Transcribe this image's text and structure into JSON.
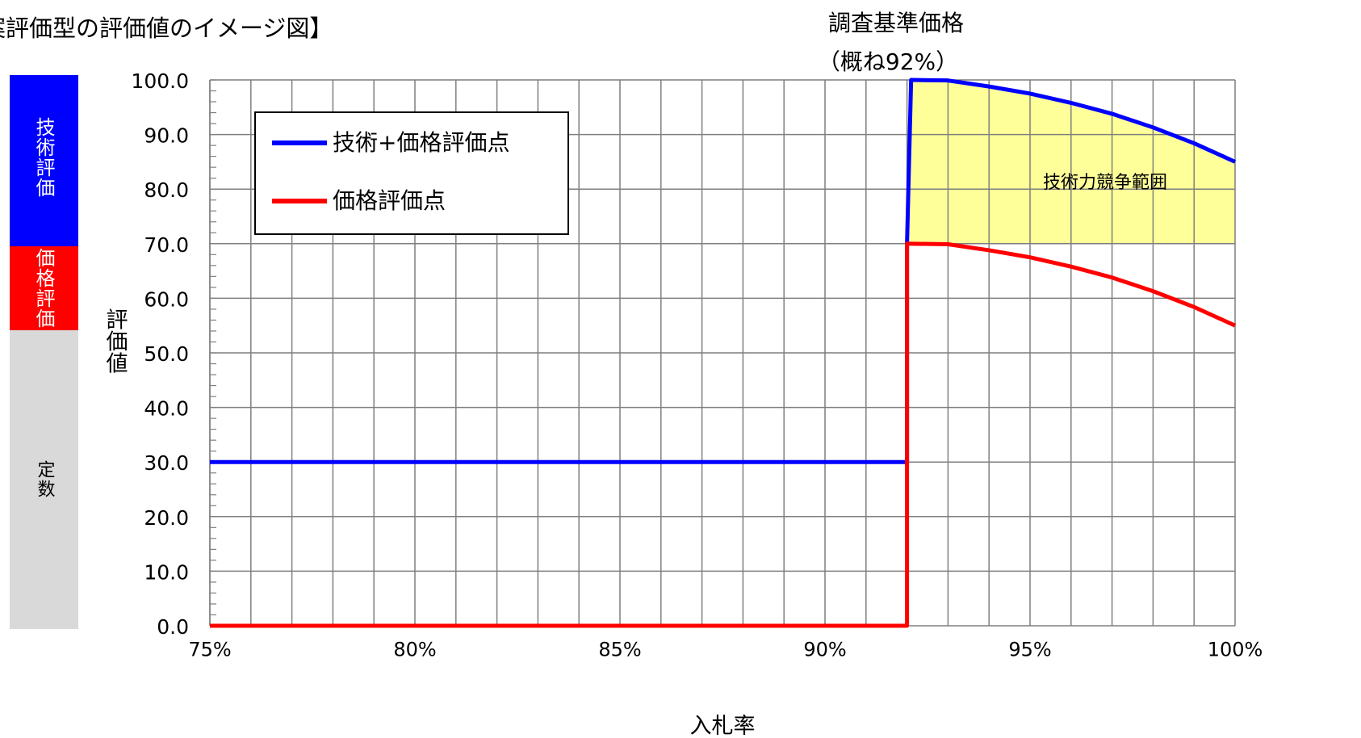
{
  "page": {
    "title": "案評価型の評価値のイメージ図】"
  },
  "bands": {
    "tech": "技術評価",
    "price": "価格評価",
    "constant": "定数"
  },
  "annotation": {
    "line1": "調査基準価格",
    "line2": "（概ね92%）"
  },
  "region_label": "技術力競争範囲",
  "colors": {
    "blue": "#0000ff",
    "red": "#ff0000",
    "fill": "#ffff99",
    "grid": "#7f7f7f",
    "band_gray": "#d9d9d9"
  },
  "chart_data": {
    "type": "line",
    "xlabel": "入札率",
    "ylabel": "評価値",
    "x_ticks": [
      "75%",
      "80%",
      "85%",
      "90%",
      "95%",
      "100%"
    ],
    "x_tick_values": [
      75,
      80,
      85,
      90,
      95,
      100
    ],
    "y_ticks": [
      "0.0",
      "10.0",
      "20.0",
      "30.0",
      "40.0",
      "50.0",
      "60.0",
      "70.0",
      "80.0",
      "90.0",
      "100.0"
    ],
    "y_tick_values": [
      0,
      10,
      20,
      30,
      40,
      50,
      60,
      70,
      80,
      90,
      100
    ],
    "xlim": [
      75,
      100
    ],
    "ylim": [
      0,
      100
    ],
    "grid": true,
    "legend_position": "top-left",
    "threshold_x": 92,
    "series": [
      {
        "name": "技術+価格評価点",
        "color": "#0000ff",
        "points": [
          [
            75,
            30
          ],
          [
            92,
            30
          ],
          [
            92,
            70
          ],
          [
            92.1,
            100
          ],
          [
            93,
            99.9
          ],
          [
            94,
            98.8
          ],
          [
            95,
            97.5
          ],
          [
            96,
            95.8
          ],
          [
            97,
            93.8
          ],
          [
            98,
            91.3
          ],
          [
            99,
            88.4
          ],
          [
            100,
            85
          ]
        ]
      },
      {
        "name": "価格評価点",
        "color": "#ff0000",
        "points": [
          [
            75,
            0
          ],
          [
            92,
            0
          ],
          [
            92,
            70
          ],
          [
            93,
            69.9
          ],
          [
            94,
            68.8
          ],
          [
            95,
            67.5
          ],
          [
            96,
            65.8
          ],
          [
            97,
            63.8
          ],
          [
            98,
            61.3
          ],
          [
            99,
            58.4
          ],
          [
            100,
            55
          ]
        ]
      }
    ],
    "shaded_region": {
      "x_from": 92,
      "x_to": 100,
      "y_lower": 70,
      "upper_series": "技術+価格評価点",
      "label": "技術力競争範囲"
    }
  }
}
